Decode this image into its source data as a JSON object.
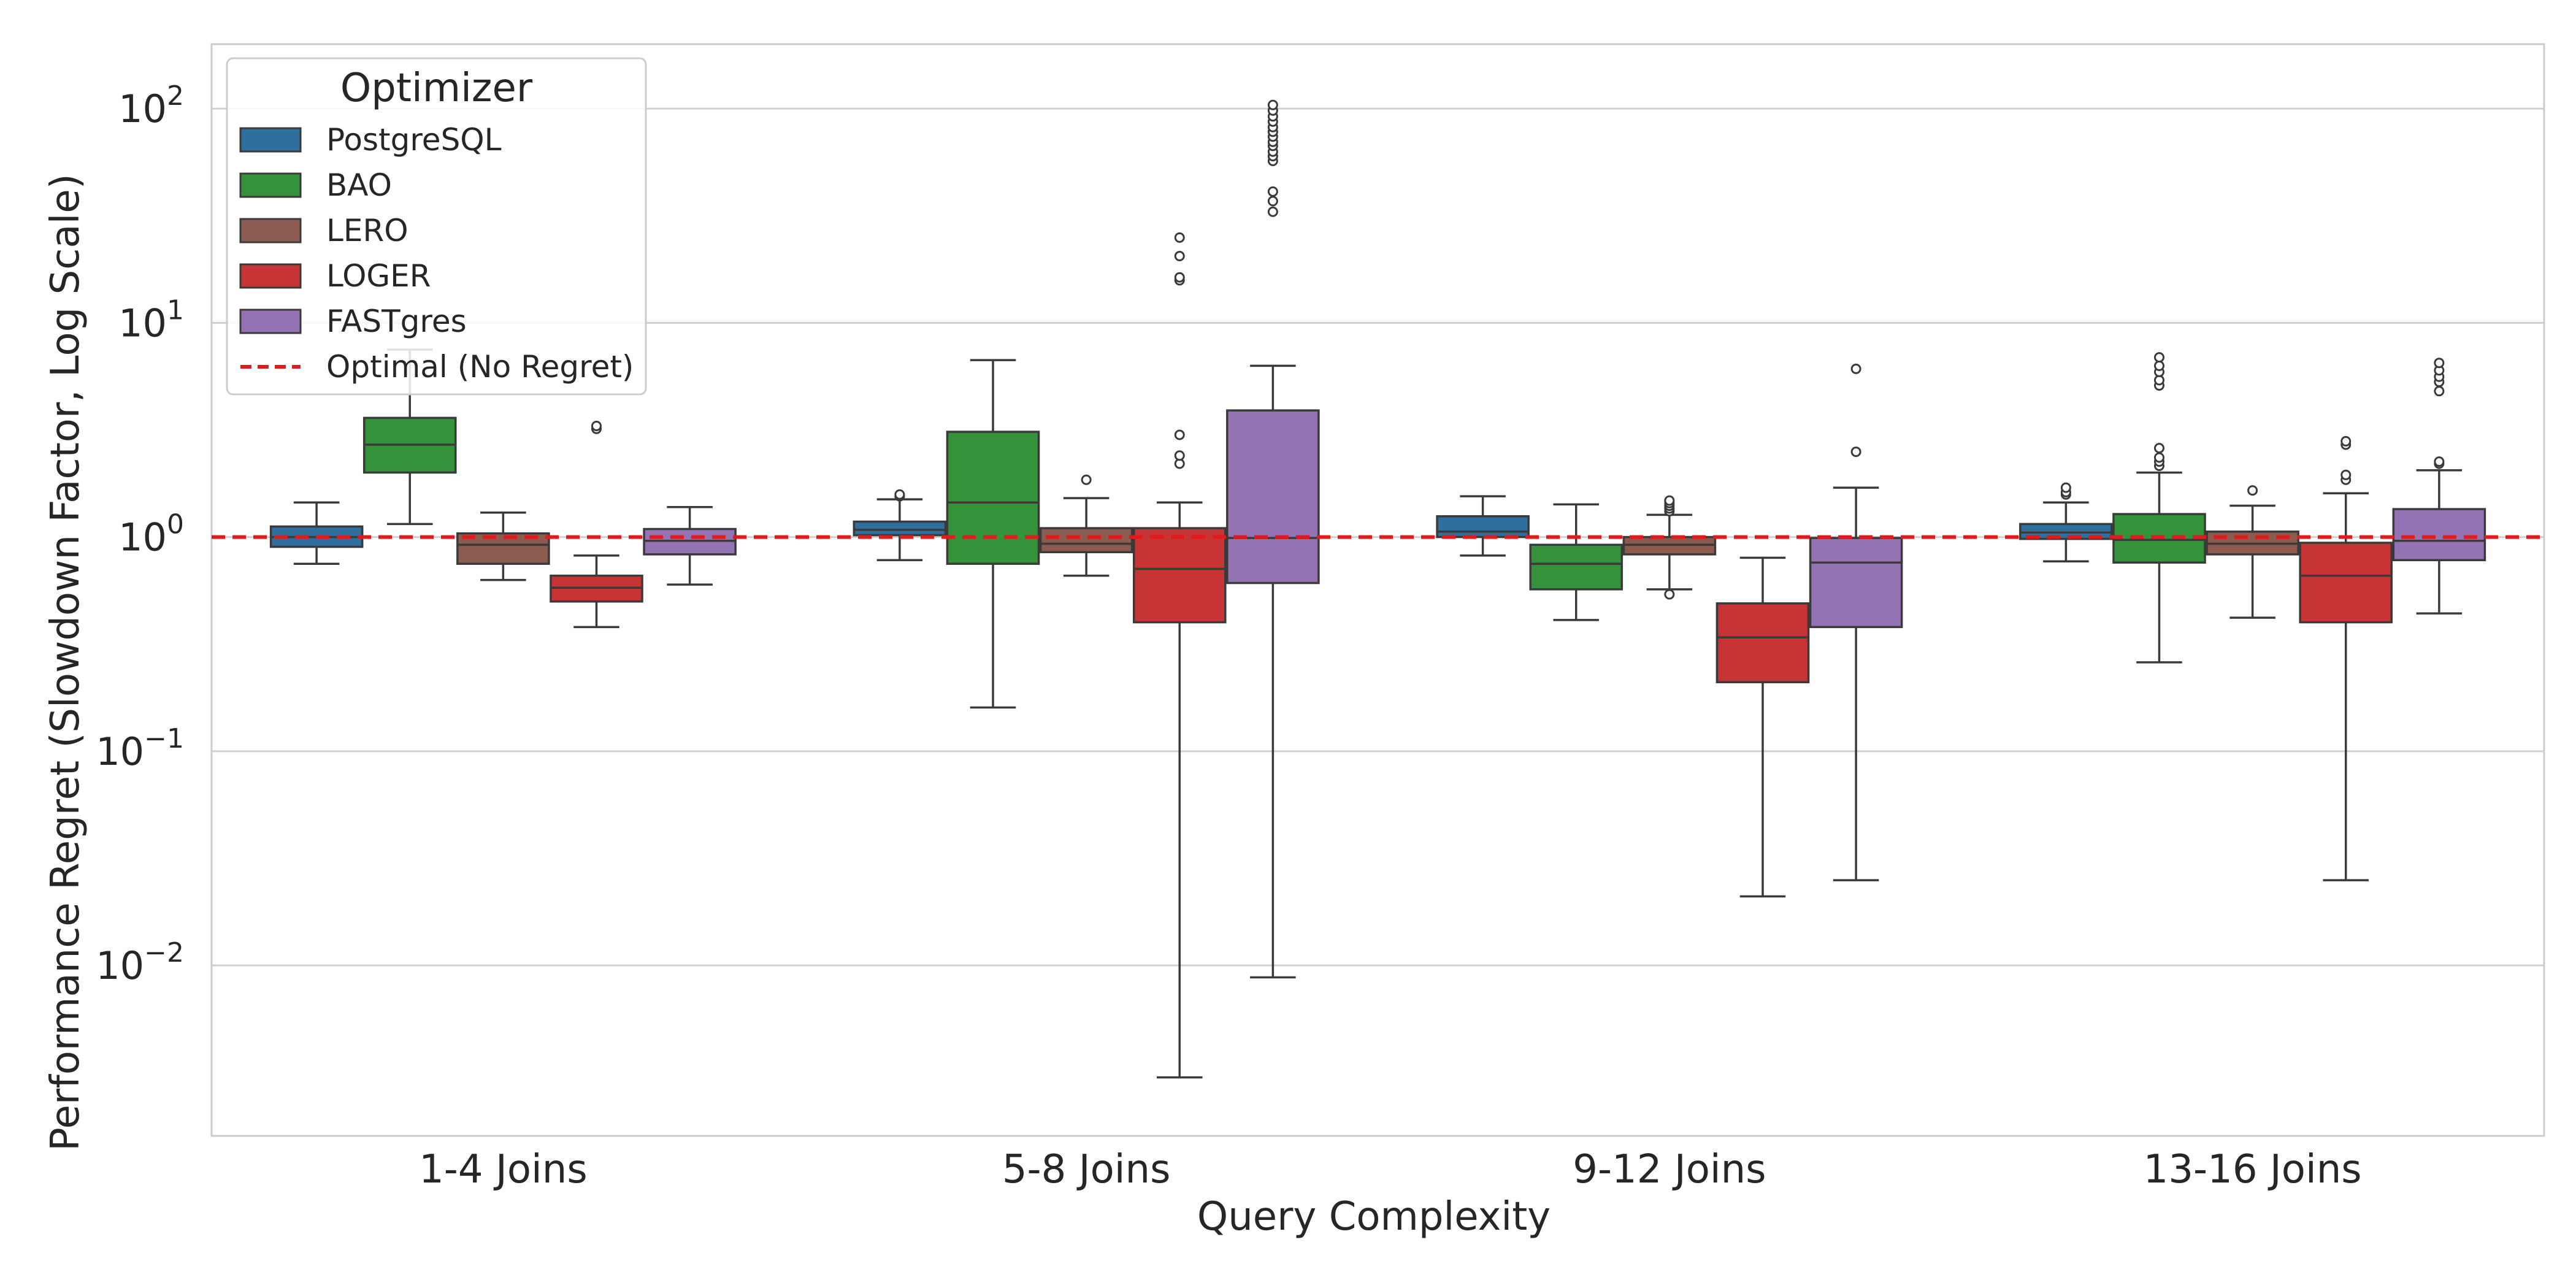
{
  "chart_data": {
    "type": "box",
    "xlabel": "Query Complexity",
    "ylabel": "Performance Regret (Slowdown Factor, Log Scale)",
    "yscale": "log",
    "ylim": [
      0.0016,
      200
    ],
    "yticks": [
      {
        "value": 100,
        "base": "10",
        "exp": "2"
      },
      {
        "value": 10,
        "base": "10",
        "exp": "1"
      },
      {
        "value": 1,
        "base": "10",
        "exp": "0"
      },
      {
        "value": 0.1,
        "base": "10",
        "exp": "−1"
      },
      {
        "value": 0.01,
        "base": "10",
        "exp": "−2"
      }
    ],
    "grid": "horizontal",
    "categories": [
      "1-4 Joins",
      "5-8 Joins",
      "9-12 Joins",
      "13-16 Joins"
    ],
    "legend": {
      "title": "Optimizer",
      "placement": "top-left",
      "reference_label": "Optimal (No Regret)"
    },
    "reference_line": {
      "value": 1.0,
      "color": "#e31a1c",
      "style": "dashed"
    },
    "series": [
      {
        "name": "PostgreSQL",
        "color": "#2f6f9e",
        "boxes": [
          {
            "whislo": 0.75,
            "q1": 0.9,
            "med": 1.0,
            "q3": 1.12,
            "whishi": 1.45,
            "fliers": []
          },
          {
            "whislo": 0.78,
            "q1": 1.02,
            "med": 1.08,
            "q3": 1.18,
            "whishi": 1.5,
            "fliers": [
              1.55,
              1.58
            ]
          },
          {
            "whislo": 0.82,
            "q1": 1.0,
            "med": 1.06,
            "q3": 1.25,
            "whishi": 1.55,
            "fliers": []
          },
          {
            "whislo": 0.77,
            "q1": 0.98,
            "med": 1.05,
            "q3": 1.15,
            "whishi": 1.45,
            "fliers": [
              1.58,
              1.62,
              1.7
            ]
          }
        ]
      },
      {
        "name": "BAO",
        "color": "#33923a",
        "boxes": [
          {
            "whislo": 1.15,
            "q1": 2.0,
            "med": 2.7,
            "q3": 3.6,
            "whishi": 7.5,
            "fliers": []
          },
          {
            "whislo": 0.16,
            "q1": 0.75,
            "med": 1.45,
            "q3": 3.1,
            "whishi": 6.7,
            "fliers": []
          },
          {
            "whislo": 0.41,
            "q1": 0.57,
            "med": 0.75,
            "q3": 0.92,
            "whishi": 1.42,
            "fliers": []
          },
          {
            "whislo": 0.26,
            "q1": 0.76,
            "med": 0.97,
            "q3": 1.28,
            "whishi": 2.0,
            "fliers": [
              2.15,
              2.25,
              2.35,
              2.6,
              5.1,
              5.4,
              5.9,
              6.3,
              6.9
            ]
          }
        ]
      },
      {
        "name": "LERO",
        "color": "#8c5b4f",
        "boxes": [
          {
            "whislo": 0.63,
            "q1": 0.75,
            "med": 0.92,
            "q3": 1.04,
            "whishi": 1.3,
            "fliers": []
          },
          {
            "whislo": 0.66,
            "q1": 0.85,
            "med": 0.93,
            "q3": 1.1,
            "whishi": 1.52,
            "fliers": [
              1.85
            ]
          },
          {
            "whislo": 0.57,
            "q1": 0.83,
            "med": 0.92,
            "q3": 1.0,
            "whishi": 1.27,
            "fliers": [
              0.54,
              1.32,
              1.36,
              1.4,
              1.44,
              1.48
            ]
          },
          {
            "whislo": 0.42,
            "q1": 0.83,
            "med": 0.93,
            "q3": 1.06,
            "whishi": 1.4,
            "fliers": [
              1.65
            ]
          }
        ]
      },
      {
        "name": "LOGER",
        "color": "#c63436",
        "boxes": [
          {
            "whislo": 0.38,
            "q1": 0.5,
            "med": 0.58,
            "q3": 0.66,
            "whishi": 0.82,
            "fliers": [
              3.2,
              3.3
            ]
          },
          {
            "whislo": 0.003,
            "q1": 0.4,
            "med": 0.71,
            "q3": 1.1,
            "whishi": 1.45,
            "fliers": [
              2.2,
              2.4,
              3.0,
              15.8,
              16.3,
              20.5,
              25
            ]
          },
          {
            "whislo": 0.021,
            "q1": 0.21,
            "med": 0.34,
            "q3": 0.49,
            "whishi": 0.8,
            "fliers": []
          },
          {
            "whislo": 0.025,
            "q1": 0.4,
            "med": 0.66,
            "q3": 0.94,
            "whishi": 1.6,
            "fliers": [
              1.85,
              1.95,
              2.7,
              2.8
            ]
          }
        ]
      },
      {
        "name": "FASTgres",
        "color": "#9473b5",
        "boxes": [
          {
            "whislo": 0.6,
            "q1": 0.83,
            "med": 0.96,
            "q3": 1.09,
            "whishi": 1.38,
            "fliers": []
          },
          {
            "whislo": 0.0088,
            "q1": 0.61,
            "med": 0.99,
            "q3": 3.9,
            "whishi": 6.3,
            "fliers": [
              33,
              37,
              41,
              57,
              60,
              63,
              67,
              70,
              74,
              78,
              82,
              87,
              92,
              98,
              104
            ]
          },
          {
            "whislo": 0.025,
            "q1": 0.38,
            "med": 0.76,
            "q3": 0.99,
            "whishi": 1.7,
            "fliers": [
              2.5,
              6.1
            ]
          },
          {
            "whislo": 0.44,
            "q1": 0.78,
            "med": 0.96,
            "q3": 1.35,
            "whishi": 2.05,
            "fliers": [
              2.2,
              2.25,
              4.8,
              5.3,
              5.6,
              6.0,
              6.5
            ]
          }
        ]
      }
    ]
  }
}
